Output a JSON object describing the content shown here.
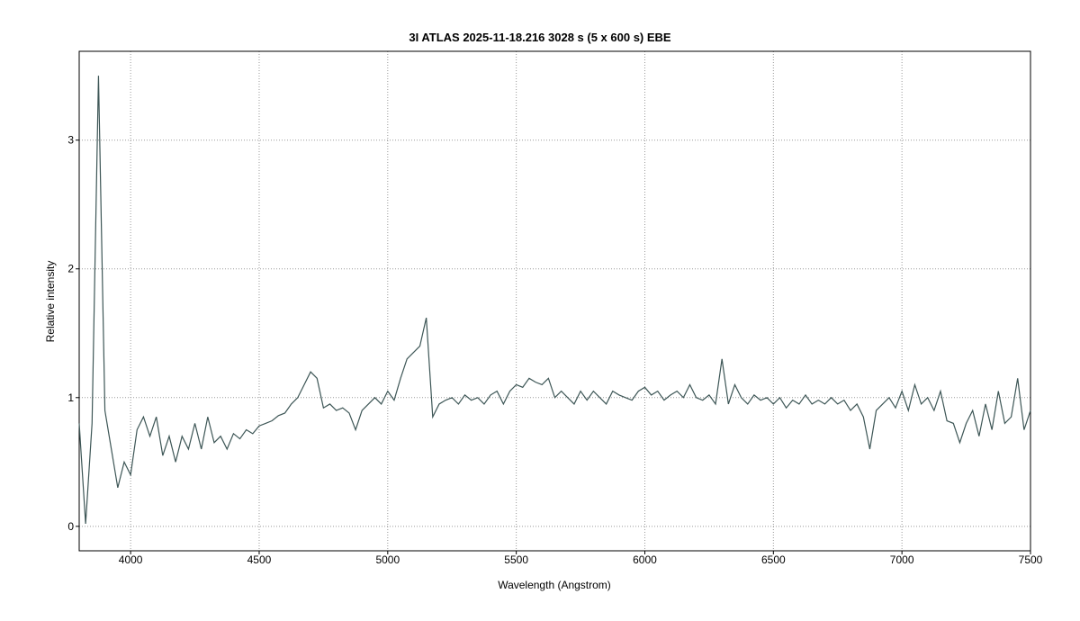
{
  "chart_data": {
    "type": "line",
    "title": "3I ATLAS  2025-11-18.216  3028 s (5 x 600 s)  EBE",
    "xlabel": "Wavelength (Angstrom)",
    "ylabel": "Relative intensity",
    "color": "#3d5656",
    "grid": true,
    "xlim": [
      3800,
      7500
    ],
    "ylim": [
      -0.19,
      3.69
    ],
    "xticks": [
      4000,
      4500,
      5000,
      5500,
      6000,
      6500,
      7000,
      7500
    ],
    "yticks": [
      0,
      1,
      2,
      3
    ],
    "x": [
      3800,
      3825,
      3850,
      3875,
      3900,
      3925,
      3950,
      3975,
      4000,
      4025,
      4050,
      4075,
      4100,
      4125,
      4150,
      4175,
      4200,
      4225,
      4250,
      4275,
      4300,
      4325,
      4350,
      4375,
      4400,
      4425,
      4450,
      4475,
      4500,
      4525,
      4550,
      4575,
      4600,
      4625,
      4650,
      4675,
      4700,
      4725,
      4750,
      4775,
      4800,
      4825,
      4850,
      4875,
      4900,
      4925,
      4950,
      4975,
      5000,
      5025,
      5050,
      5075,
      5100,
      5125,
      5150,
      5175,
      5200,
      5225,
      5250,
      5275,
      5300,
      5325,
      5350,
      5375,
      5400,
      5425,
      5450,
      5475,
      5500,
      5525,
      5550,
      5575,
      5600,
      5625,
      5650,
      5675,
      5700,
      5725,
      5750,
      5775,
      5800,
      5825,
      5850,
      5875,
      5900,
      5925,
      5950,
      5975,
      6000,
      6025,
      6050,
      6075,
      6100,
      6125,
      6150,
      6175,
      6200,
      6225,
      6250,
      6275,
      6300,
      6325,
      6350,
      6375,
      6400,
      6425,
      6450,
      6475,
      6500,
      6525,
      6550,
      6575,
      6600,
      6625,
      6650,
      6675,
      6700,
      6725,
      6750,
      6775,
      6800,
      6825,
      6850,
      6875,
      6900,
      6925,
      6950,
      6975,
      7000,
      7025,
      7050,
      7075,
      7100,
      7125,
      7150,
      7175,
      7200,
      7225,
      7250,
      7275,
      7300,
      7325,
      7350,
      7375,
      7400,
      7425,
      7450,
      7475,
      7500
    ],
    "values": [
      0.8,
      0.02,
      0.8,
      3.5,
      0.9,
      0.6,
      0.3,
      0.5,
      0.4,
      0.75,
      0.85,
      0.7,
      0.85,
      0.55,
      0.7,
      0.5,
      0.7,
      0.6,
      0.8,
      0.6,
      0.85,
      0.65,
      0.7,
      0.6,
      0.72,
      0.68,
      0.75,
      0.72,
      0.78,
      0.8,
      0.82,
      0.86,
      0.88,
      0.95,
      1.0,
      1.1,
      1.2,
      1.15,
      0.92,
      0.95,
      0.9,
      0.92,
      0.88,
      0.75,
      0.9,
      0.95,
      1.0,
      0.95,
      1.05,
      0.98,
      1.15,
      1.3,
      1.35,
      1.4,
      1.62,
      0.85,
      0.95,
      0.98,
      1.0,
      0.95,
      1.02,
      0.98,
      1.0,
      0.95,
      1.02,
      1.05,
      0.95,
      1.05,
      1.1,
      1.08,
      1.15,
      1.12,
      1.1,
      1.15,
      1.0,
      1.05,
      1.0,
      0.95,
      1.05,
      0.98,
      1.05,
      1.0,
      0.95,
      1.05,
      1.02,
      1.0,
      0.98,
      1.05,
      1.08,
      1.02,
      1.05,
      0.98,
      1.02,
      1.05,
      1.0,
      1.1,
      1.0,
      0.98,
      1.02,
      0.95,
      1.3,
      0.95,
      1.1,
      1.0,
      0.95,
      1.02,
      0.98,
      1.0,
      0.95,
      1.0,
      0.92,
      0.98,
      0.95,
      1.02,
      0.95,
      0.98,
      0.95,
      1.0,
      0.95,
      0.98,
      0.9,
      0.95,
      0.85,
      0.6,
      0.9,
      0.95,
      1.0,
      0.92,
      1.05,
      0.9,
      1.1,
      0.95,
      1.0,
      0.9,
      1.05,
      0.82,
      0.8,
      0.65,
      0.8,
      0.9,
      0.7,
      0.95,
      0.75,
      1.05,
      0.8,
      0.85,
      1.15,
      0.75,
      0.9
    ]
  }
}
